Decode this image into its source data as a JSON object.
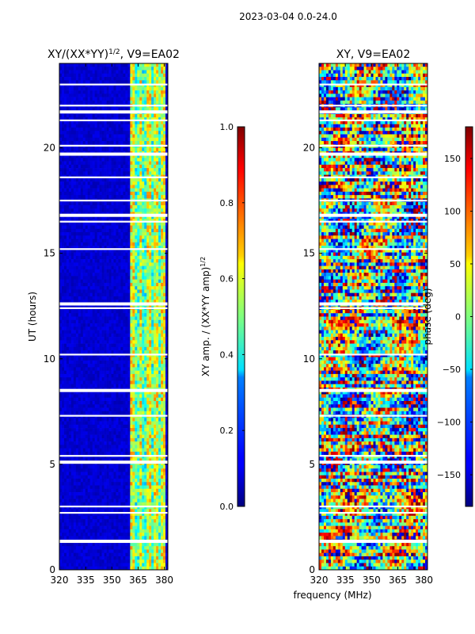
{
  "figure": {
    "suptitle": "2023-03-04 0.0-24.0",
    "shared_xlabel": "frequency (MHz)",
    "background": "#ffffff"
  },
  "chart_data": [
    {
      "type": "heatmap",
      "title": "XY/(XX*YY)^{1/2}, V9=EA02",
      "title_base": "XY/(XX*YY)",
      "title_exponent": "1/2",
      "title_suffix": ", V9=EA02",
      "xlabel": "",
      "ylabel": "UT (hours)",
      "xlim": [
        320,
        382
      ],
      "ylim": [
        0,
        24
      ],
      "xticks": [
        320,
        335,
        350,
        365,
        380
      ],
      "yticks": [
        0,
        5,
        10,
        15,
        20
      ],
      "colormap": "jet",
      "colorbar": {
        "label": "XY amp. / (XX*YY amp)^{1/2}",
        "label_base": "XY amp. / (XX*YY amp)",
        "label_exponent": "1/2",
        "range": [
          0.0,
          1.0
        ],
        "ticks": [
          "0.0",
          "0.2",
          "0.4",
          "0.6",
          "0.8",
          "1.0"
        ],
        "tick_values": [
          0.0,
          0.2,
          0.4,
          0.6,
          0.8,
          1.0
        ]
      },
      "bright_band_mhz": [
        361,
        381
      ],
      "typical_value_outside_band": 0.05,
      "typical_value_in_band": 0.45,
      "data_gaps_hours": [
        1.35,
        2.7,
        3.0,
        5.1,
        5.4,
        7.3,
        8.5,
        10.2,
        12.4,
        12.6,
        15.2,
        16.5,
        16.8,
        17.5,
        18.6,
        19.7,
        20.1,
        21.3,
        21.7,
        22.0,
        23.0
      ]
    },
    {
      "type": "heatmap",
      "title": "XY, V9=EA02",
      "xlabel": "",
      "ylabel": "",
      "xlim": [
        320,
        382
      ],
      "ylim": [
        0,
        24
      ],
      "xticks": [
        320,
        335,
        350,
        365,
        380
      ],
      "yticks": [
        0,
        5,
        10,
        15,
        20
      ],
      "colormap": "jet",
      "colorbar": {
        "label": "phase (deg)",
        "range": [
          -180,
          180
        ],
        "ticks": [
          "−150",
          "−100",
          "−50",
          "0",
          "50",
          "100",
          "150"
        ],
        "tick_values": [
          -150,
          -100,
          -50,
          0,
          50,
          100,
          150
        ]
      },
      "data_gaps_hours": [
        1.35,
        2.7,
        3.0,
        5.1,
        5.4,
        7.3,
        8.5,
        10.2,
        12.4,
        12.6,
        15.2,
        16.5,
        16.8,
        17.5,
        18.6,
        19.7,
        20.1,
        21.3,
        21.7,
        22.0,
        23.0
      ]
    }
  ]
}
